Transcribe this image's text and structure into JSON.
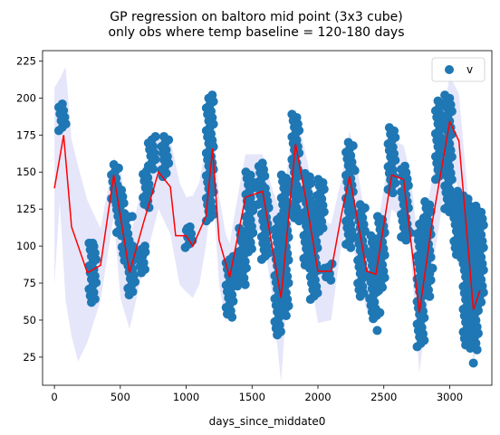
{
  "chart_data": {
    "type": "scatter",
    "title_line1": "GP regression on baltoro mid point (3x3 cube)",
    "title_line2": "only obs where temp baseline = 120-180 days",
    "xlabel": "days_since_middate0",
    "ylabel": "",
    "xlim": [
      -90,
      3320
    ],
    "ylim": [
      6,
      232
    ],
    "xticks": [
      0,
      500,
      1000,
      1500,
      2000,
      2500,
      3000
    ],
    "yticks": [
      25,
      50,
      75,
      100,
      125,
      150,
      175,
      200,
      225
    ],
    "grid": false,
    "legend_position": "top-right",
    "colors": {
      "observations": "#1f77b4",
      "prediction": "#ff0000",
      "confidence_band": "#e6e6fa"
    },
    "series": [
      {
        "name": "v",
        "kind": "scatter",
        "clusters": [
          {
            "x": 60,
            "ymin": 178,
            "ymax": 196
          },
          {
            "x": 290,
            "ymin": 62,
            "ymax": 102
          },
          {
            "x": 460,
            "ymin": 132,
            "ymax": 155
          },
          {
            "x": 500,
            "ymin": 107,
            "ymax": 140
          },
          {
            "x": 540,
            "ymin": 88,
            "ymax": 122
          },
          {
            "x": 585,
            "ymin": 67,
            "ymax": 100
          },
          {
            "x": 660,
            "ymin": 82,
            "ymax": 100
          },
          {
            "x": 700,
            "ymin": 126,
            "ymax": 153
          },
          {
            "x": 740,
            "ymin": 152,
            "ymax": 174
          },
          {
            "x": 840,
            "ymin": 147,
            "ymax": 174
          },
          {
            "x": 1020,
            "ymin": 99,
            "ymax": 113
          },
          {
            "x": 1180,
            "ymin": 117,
            "ymax": 202
          },
          {
            "x": 1330,
            "ymin": 52,
            "ymax": 93
          },
          {
            "x": 1380,
            "ymin": 73,
            "ymax": 89
          },
          {
            "x": 1430,
            "ymin": 74,
            "ymax": 112
          },
          {
            "x": 1480,
            "ymin": 96,
            "ymax": 150
          },
          {
            "x": 1570,
            "ymin": 128,
            "ymax": 156
          },
          {
            "x": 1600,
            "ymin": 91,
            "ymax": 139
          },
          {
            "x": 1700,
            "ymin": 40,
            "ymax": 120
          },
          {
            "x": 1750,
            "ymin": 53,
            "ymax": 148
          },
          {
            "x": 1830,
            "ymin": 117,
            "ymax": 189
          },
          {
            "x": 1920,
            "ymin": 85,
            "ymax": 149
          },
          {
            "x": 1970,
            "ymin": 64,
            "ymax": 127
          },
          {
            "x": 2020,
            "ymin": 110,
            "ymax": 145
          },
          {
            "x": 2080,
            "ymin": 77,
            "ymax": 88
          },
          {
            "x": 2240,
            "ymin": 99,
            "ymax": 170
          },
          {
            "x": 2330,
            "ymin": 66,
            "ymax": 128
          },
          {
            "x": 2420,
            "ymin": 51,
            "ymax": 107
          },
          {
            "x": 2480,
            "ymin": 70,
            "ymax": 120
          },
          {
            "x": 2560,
            "ymin": 136,
            "ymax": 180
          },
          {
            "x": 2660,
            "ymin": 104,
            "ymax": 154
          },
          {
            "x": 2780,
            "ymin": 32,
            "ymax": 117
          },
          {
            "x": 2830,
            "ymin": 66,
            "ymax": 130
          },
          {
            "x": 2920,
            "ymin": 145,
            "ymax": 198
          },
          {
            "x": 2990,
            "ymin": 123,
            "ymax": 202
          },
          {
            "x": 3060,
            "ymin": 92,
            "ymax": 137
          },
          {
            "x": 3130,
            "ymin": 31,
            "ymax": 134
          },
          {
            "x": 3190,
            "ymin": 30,
            "ymax": 127
          },
          {
            "x": 3230,
            "ymin": 60,
            "ymax": 125
          }
        ],
        "extra_points": [
          {
            "x": 290,
            "y": 102
          },
          {
            "x": 470,
            "y": 128
          },
          {
            "x": 590,
            "y": 120
          },
          {
            "x": 690,
            "y": 96
          },
          {
            "x": 1020,
            "y": 108
          },
          {
            "x": 1010,
            "y": 112
          },
          {
            "x": 1030,
            "y": 102
          },
          {
            "x": 1180,
            "y": 177
          },
          {
            "x": 1200,
            "y": 168
          },
          {
            "x": 1440,
            "y": 107
          },
          {
            "x": 2010,
            "y": 84
          },
          {
            "x": 2050,
            "y": 85
          },
          {
            "x": 2280,
            "y": 151
          },
          {
            "x": 2450,
            "y": 43
          },
          {
            "x": 2470,
            "y": 55
          },
          {
            "x": 2700,
            "y": 109
          },
          {
            "x": 2870,
            "y": 85
          },
          {
            "x": 3050,
            "y": 133
          },
          {
            "x": 3180,
            "y": 21
          },
          {
            "x": 3180,
            "y": 40
          },
          {
            "x": 2980,
            "y": 197
          },
          {
            "x": 2970,
            "y": 163
          }
        ]
      },
      {
        "name": "",
        "kind": "line",
        "x": [
          0,
          70,
          130,
          250,
          350,
          450,
          570,
          680,
          790,
          880,
          920,
          1000,
          1050,
          1150,
          1200,
          1250,
          1330,
          1450,
          1580,
          1720,
          1830,
          1920,
          2000,
          2100,
          2180,
          2240,
          2300,
          2370,
          2440,
          2560,
          2650,
          2770,
          2860,
          3000,
          3070,
          3180,
          3230
        ],
        "y": [
          139,
          175,
          113,
          82,
          87,
          148,
          82,
          117,
          150,
          140,
          107,
          107,
          100,
          120,
          166,
          104,
          79,
          133,
          137,
          65,
          169,
          126,
          83,
          83,
          122,
          147,
          118,
          83,
          81,
          148,
          145,
          55,
          112,
          184,
          171,
          57,
          70
        ]
      }
    ],
    "confidence_band": {
      "x": [
        0,
        40,
        85,
        130,
        180,
        250,
        350,
        450,
        500,
        570,
        680,
        790,
        880,
        950,
        1000,
        1050,
        1100,
        1150,
        1200,
        1250,
        1300,
        1330,
        1400,
        1450,
        1580,
        1650,
        1720,
        1830,
        1920,
        2000,
        2100,
        2180,
        2240,
        2300,
        2370,
        2440,
        2560,
        2650,
        2700,
        2770,
        2860,
        3000,
        3070,
        3180,
        3230
      ],
      "upper": [
        207,
        213,
        221,
        172,
        154,
        131,
        112,
        160,
        154,
        104,
        147,
        175,
        172,
        143,
        133,
        134,
        143,
        170,
        190,
        134,
        108,
        102,
        138,
        162,
        162,
        140,
        122,
        193,
        157,
        118,
        115,
        146,
        178,
        152,
        113,
        106,
        172,
        168,
        150,
        95,
        142,
        215,
        203,
        92,
        102
      ],
      "lower": [
        74,
        130,
        63,
        39,
        22,
        35,
        63,
        120,
        65,
        44,
        87,
        125,
        108,
        74,
        69,
        65,
        74,
        100,
        141,
        74,
        49,
        54,
        108,
        111,
        110,
        68,
        8,
        147,
        93,
        48,
        50,
        102,
        114,
        84,
        56,
        56,
        125,
        117,
        100,
        14,
        80,
        159,
        136,
        22,
        40
      ]
    }
  }
}
